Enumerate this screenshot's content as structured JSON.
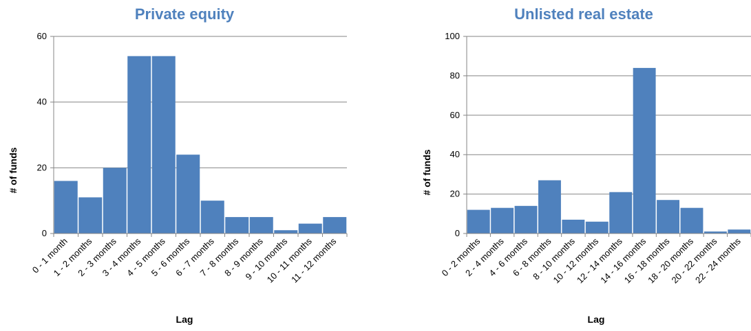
{
  "chart_data": [
    {
      "type": "bar",
      "title": "Private equity",
      "xlabel": "Lag",
      "ylabel": "# of funds",
      "ylim": [
        0,
        60
      ],
      "yticks": [
        0,
        20,
        40,
        60
      ],
      "grid": true,
      "color": "#4f81bd",
      "categories": [
        "0 - 1 month",
        "1 - 2 months",
        "2 - 3 months",
        "3 - 4 months",
        "4 - 5 months",
        "5 - 6 months",
        "6 - 7 months",
        "7 - 8 months",
        "8 - 9 months",
        "9 - 10 months",
        "10 - 11 months",
        "11 - 12 months"
      ],
      "values": [
        16,
        11,
        20,
        54,
        54,
        24,
        10,
        5,
        5,
        1,
        3,
        5
      ]
    },
    {
      "type": "bar",
      "title": "Unlisted real estate",
      "xlabel": "Lag",
      "ylabel": "# of funds",
      "ylim": [
        0,
        100
      ],
      "yticks": [
        0,
        20,
        40,
        60,
        80,
        100
      ],
      "grid": true,
      "color": "#4f81bd",
      "categories": [
        "0 - 2 months",
        "2 - 4 months",
        "4 - 6 months",
        "6 - 8 months",
        "8 - 10 months",
        "10 - 12 months",
        "12 - 14 months",
        "14 - 16 months",
        "16 - 18 months",
        "18 - 20 months",
        "20 - 22 months",
        "22 - 24 months"
      ],
      "values": [
        12,
        13,
        14,
        27,
        7,
        6,
        21,
        84,
        17,
        13,
        1,
        2
      ]
    }
  ]
}
